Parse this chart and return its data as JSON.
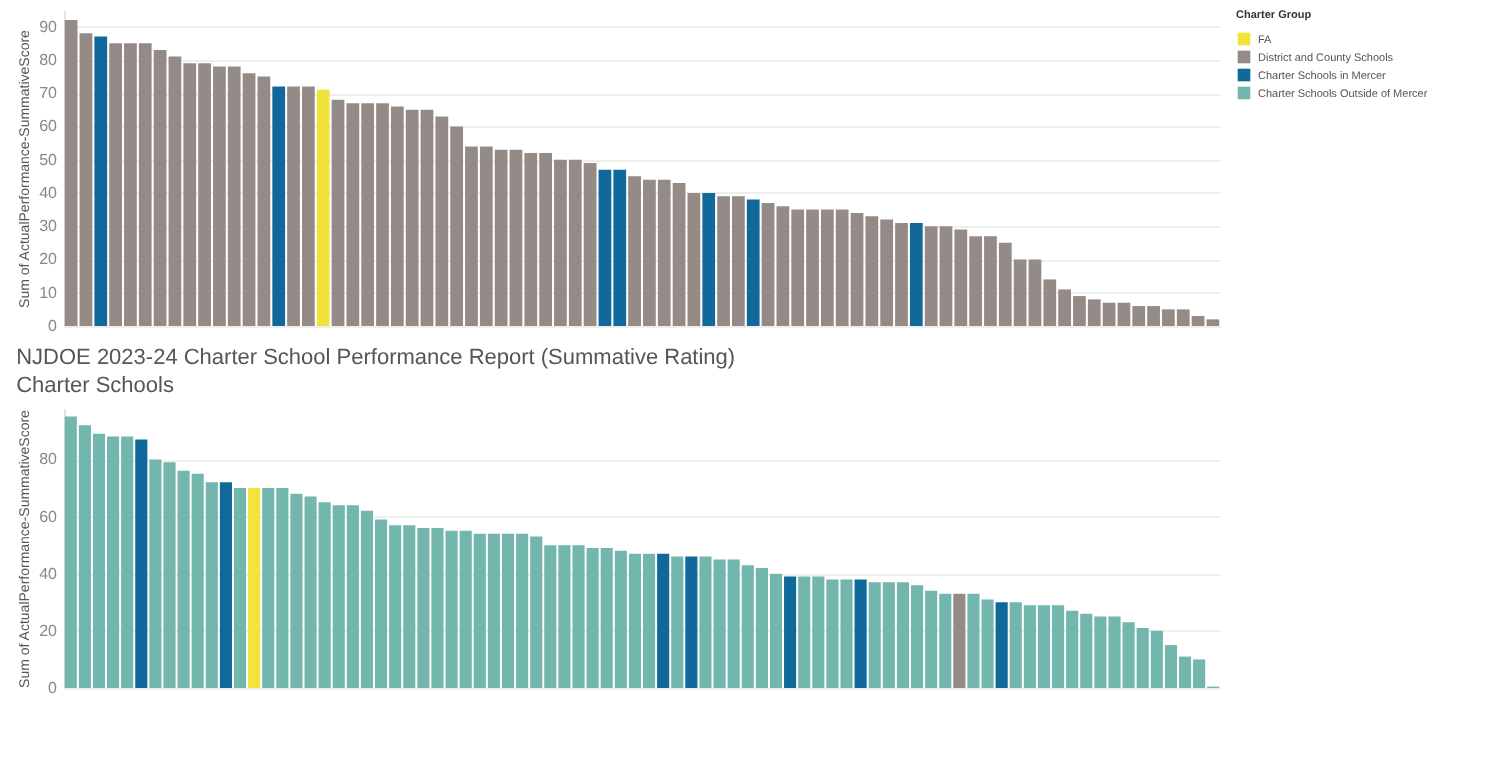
{
  "chart_data": [
    {
      "type": "bar",
      "ylabel": "Sum of ActualPerformance-SummativeScore",
      "legend_title": "Charter Group",
      "legend": "top right",
      "grid": "y",
      "ylim": [
        0,
        95
      ],
      "yticks": [
        0,
        10,
        20,
        30,
        40,
        50,
        60,
        70,
        80,
        90
      ],
      "categories": [
        null,
        null,
        null,
        null,
        null,
        null,
        null,
        null,
        null,
        null,
        null,
        null,
        null,
        null,
        null,
        null,
        null,
        null,
        null,
        null,
        null,
        null,
        null,
        null,
        null,
        null,
        null,
        null,
        null,
        null,
        null,
        null,
        null,
        null,
        null,
        null,
        null,
        null,
        null,
        null,
        null,
        null,
        null,
        null,
        null,
        null,
        null,
        null,
        null,
        null,
        null,
        null,
        null,
        null,
        null,
        null,
        null,
        null,
        null,
        null,
        null,
        null,
        null,
        null,
        null,
        null,
        null,
        null,
        null,
        null,
        null,
        null,
        null,
        null,
        null,
        null,
        null,
        null
      ],
      "series": [
        {
          "name": "FA",
          "color": "#f2e33a",
          "values": [
            null,
            null,
            null,
            null,
            null,
            null,
            null,
            null,
            null,
            null,
            null,
            null,
            null,
            null,
            null,
            null,
            null,
            71,
            null,
            null,
            null,
            null,
            null,
            null,
            null,
            null,
            null,
            null,
            null,
            null,
            null,
            null,
            null,
            null,
            null,
            null,
            null,
            null,
            null,
            null,
            null,
            null,
            null,
            null,
            null,
            null,
            null,
            null,
            null,
            null,
            null,
            null,
            null,
            null,
            null,
            null,
            null,
            null,
            null,
            null,
            null,
            null,
            null,
            null,
            null,
            null,
            null,
            null,
            null,
            null,
            null,
            null,
            null,
            null,
            null,
            null,
            null,
            null
          ]
        },
        {
          "name": "District and County Schools",
          "color": "#948b87",
          "values": [
            92,
            88,
            null,
            85,
            85,
            85,
            83,
            81,
            79,
            79,
            78,
            78,
            76,
            75,
            null,
            72,
            72,
            null,
            68,
            67,
            67,
            67,
            66,
            65,
            65,
            63,
            60,
            54,
            54,
            53,
            53,
            52,
            52,
            50,
            50,
            49,
            null,
            null,
            45,
            44,
            44,
            43,
            40,
            null,
            39,
            39,
            null,
            37,
            36,
            35,
            35,
            35,
            35,
            34,
            33,
            32,
            31,
            null,
            30,
            30,
            29,
            27,
            27,
            25,
            20,
            20,
            14,
            11,
            9,
            8,
            7,
            7,
            6,
            6,
            5,
            5,
            3,
            2
          ]
        },
        {
          "name": "Charter Schools in Mercer",
          "color": "#11689b",
          "values": [
            null,
            null,
            87,
            null,
            null,
            null,
            null,
            null,
            null,
            null,
            null,
            null,
            null,
            null,
            72,
            null,
            null,
            null,
            null,
            null,
            null,
            null,
            null,
            null,
            null,
            null,
            null,
            null,
            null,
            null,
            null,
            null,
            null,
            null,
            null,
            null,
            47,
            47,
            null,
            null,
            null,
            null,
            null,
            40,
            null,
            null,
            38,
            null,
            null,
            null,
            null,
            null,
            null,
            null,
            null,
            null,
            null,
            31,
            null,
            null,
            null,
            null,
            null,
            null,
            null,
            null,
            null,
            null,
            null,
            null,
            null,
            null,
            null,
            null,
            null,
            null,
            null,
            null
          ]
        },
        {
          "name": "Charter Schools Outside of Mercer",
          "color": "#73b6ad",
          "values": [
            null,
            null,
            null,
            null,
            null,
            null,
            null,
            null,
            null,
            null,
            null,
            null,
            null,
            null,
            null,
            null,
            null,
            null,
            null,
            null,
            null,
            null,
            null,
            null,
            null,
            null,
            null,
            null,
            null,
            null,
            null,
            null,
            null,
            null,
            null,
            null,
            null,
            null,
            null,
            null,
            null,
            null,
            null,
            null,
            null,
            null,
            null,
            null,
            null,
            null,
            null,
            null,
            null,
            null,
            null,
            null,
            null,
            null,
            null,
            null,
            null,
            null,
            null,
            null,
            null,
            null,
            null,
            null,
            null,
            null,
            null,
            null,
            null,
            null,
            null,
            null,
            null,
            null
          ]
        }
      ]
    },
    {
      "type": "bar",
      "title": "NJDOE 2023-24 Charter School Performance Report (Summative Rating)",
      "subtitle": "Charter Schools",
      "ylabel": "Sum of ActualPerformance-SummativeScore",
      "grid": "y",
      "ylim": [
        0,
        98
      ],
      "yticks": [
        0,
        20,
        40,
        60,
        80
      ],
      "categories": [
        null,
        null,
        null,
        null,
        null,
        null,
        null,
        null,
        null,
        null,
        null,
        null,
        null,
        null,
        null,
        null,
        null,
        null,
        null,
        null,
        null,
        null,
        null,
        null,
        null,
        null,
        null,
        null,
        null,
        null,
        null,
        null,
        null,
        null,
        null,
        null,
        null,
        null,
        null,
        null,
        null,
        null,
        null,
        null,
        null,
        null,
        null,
        null,
        null,
        null,
        null,
        null,
        null,
        null,
        null,
        null,
        null,
        null,
        null,
        null,
        null,
        null,
        null,
        null,
        null,
        null,
        null,
        null,
        null,
        null,
        null,
        null,
        null,
        null,
        null,
        null,
        null,
        null,
        null,
        null,
        null,
        null
      ],
      "series": [
        {
          "color": "#f2e33a",
          "values": [
            null,
            null,
            null,
            null,
            null,
            null,
            null,
            null,
            null,
            null,
            null,
            null,
            null,
            70,
            null,
            null,
            null,
            null,
            null,
            null,
            null,
            null,
            null,
            null,
            null,
            null,
            null,
            null,
            null,
            null,
            null,
            null,
            null,
            null,
            null,
            null,
            null,
            null,
            null,
            null,
            null,
            null,
            null,
            null,
            null,
            null,
            null,
            null,
            null,
            null,
            null,
            null,
            null,
            null,
            null,
            null,
            null,
            null,
            null,
            null,
            null,
            null,
            null,
            null,
            null,
            null,
            null,
            null,
            null,
            null,
            null,
            null,
            null,
            null,
            null,
            null,
            null,
            null,
            null,
            null,
            null,
            null
          ]
        },
        {
          "color": "#948b87",
          "values": [
            null,
            null,
            null,
            null,
            null,
            null,
            null,
            null,
            null,
            null,
            null,
            null,
            null,
            null,
            null,
            null,
            null,
            null,
            null,
            null,
            null,
            null,
            null,
            null,
            null,
            null,
            null,
            null,
            null,
            null,
            null,
            null,
            null,
            null,
            null,
            null,
            null,
            null,
            null,
            null,
            null,
            null,
            null,
            null,
            null,
            null,
            null,
            null,
            null,
            null,
            null,
            null,
            null,
            null,
            null,
            null,
            null,
            null,
            null,
            null,
            null,
            null,
            null,
            33,
            null,
            null,
            null,
            null,
            null,
            null,
            null,
            null,
            null,
            null,
            null,
            null,
            null,
            null,
            null,
            null,
            null,
            null
          ]
        },
        {
          "color": "#11689b",
          "values": [
            null,
            null,
            null,
            null,
            null,
            87,
            null,
            null,
            null,
            null,
            null,
            72,
            null,
            null,
            null,
            null,
            null,
            null,
            null,
            null,
            null,
            null,
            null,
            null,
            null,
            null,
            null,
            null,
            null,
            null,
            null,
            null,
            null,
            null,
            null,
            null,
            null,
            null,
            null,
            null,
            null,
            null,
            47,
            null,
            46,
            null,
            null,
            null,
            null,
            null,
            null,
            39,
            null,
            null,
            null,
            null,
            38,
            null,
            null,
            null,
            null,
            null,
            null,
            null,
            null,
            null,
            30,
            null,
            null,
            null,
            null,
            null,
            null,
            null,
            null,
            null,
            null,
            null,
            null,
            null,
            null,
            null
          ]
        },
        {
          "color": "#73b6ad",
          "values": [
            95,
            92,
            89,
            88,
            88,
            null,
            80,
            79,
            76,
            75,
            72,
            null,
            70,
            null,
            70,
            70,
            68,
            67,
            65,
            64,
            64,
            62,
            59,
            57,
            57,
            56,
            56,
            55,
            55,
            54,
            54,
            54,
            54,
            53,
            50,
            50,
            50,
            49,
            49,
            48,
            47,
            47,
            null,
            46,
            null,
            46,
            45,
            45,
            43,
            42,
            40,
            null,
            39,
            39,
            38,
            38,
            null,
            37,
            37,
            37,
            36,
            34,
            33,
            null,
            33,
            31,
            null,
            30,
            29,
            29,
            29,
            27,
            26,
            25,
            25,
            23,
            21,
            20,
            15,
            11,
            10,
            0.5
          ]
        }
      ]
    }
  ]
}
